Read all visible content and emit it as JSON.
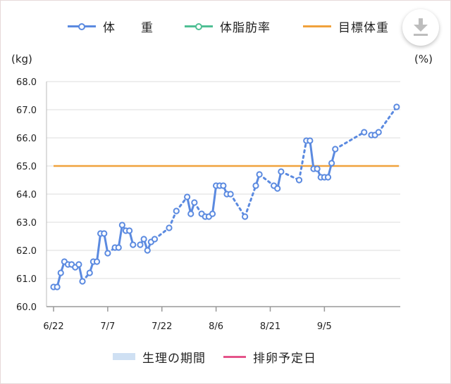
{
  "legend_top": [
    {
      "label": "体　　重",
      "color": "#5b8ae0",
      "marker": true
    },
    {
      "label": "体脂肪率",
      "color": "#4fbf94",
      "marker": true
    },
    {
      "label": "目標体重",
      "color": "#f0a23c",
      "marker": false
    }
  ],
  "download_button": {
    "icon": "download-icon",
    "color": "#bdbdbd"
  },
  "legend_bottom": [
    {
      "label": "生理の期間",
      "color": "#cfe0f3",
      "kind": "swatch"
    },
    {
      "label": "排卵予定日",
      "color": "#e5548a",
      "kind": "line"
    }
  ],
  "chart_data": {
    "type": "line",
    "ylabel": "(kg)",
    "y2label": "(%)",
    "ylim": [
      60.0,
      68.0
    ],
    "yticks": [
      "60.0",
      "61.0",
      "62.0",
      "63.0",
      "64.0",
      "65.0",
      "66.0",
      "67.0",
      "68.0"
    ],
    "xlim": [
      "2021-06-22",
      "2021-09-26"
    ],
    "xticks": [
      {
        "date": "2021-06-22",
        "label": "6/22"
      },
      {
        "date": "2021-07-07",
        "label": "7/7"
      },
      {
        "date": "2021-07-22",
        "label": "7/22"
      },
      {
        "date": "2021-08-06",
        "label": "8/6"
      },
      {
        "date": "2021-08-21",
        "label": "8/21"
      },
      {
        "date": "2021-09-05",
        "label": "9/5"
      }
    ],
    "grid": true,
    "target_weight": 65.0,
    "target_color": "#f0a23c",
    "series_color": "#5b8ae0",
    "series": [
      {
        "name": "体重",
        "points": [
          [
            "2021-06-22",
            60.7
          ],
          [
            "2021-06-23",
            60.7
          ],
          [
            "2021-06-24",
            61.2
          ],
          [
            "2021-06-25",
            61.6
          ],
          [
            "2021-06-26",
            61.5
          ],
          [
            "2021-06-27",
            61.5
          ],
          [
            "2021-06-28",
            61.4
          ],
          [
            "2021-06-29",
            61.5
          ],
          [
            "2021-06-30",
            60.9
          ],
          [
            "2021-07-02",
            61.2
          ],
          [
            "2021-07-03",
            61.6
          ],
          [
            "2021-07-04",
            61.6
          ],
          [
            "2021-07-05",
            62.6
          ],
          [
            "2021-07-06",
            62.6
          ],
          [
            "2021-07-07",
            61.9
          ],
          [
            "2021-07-09",
            62.1
          ],
          [
            "2021-07-10",
            62.1
          ],
          [
            "2021-07-11",
            62.9
          ],
          [
            "2021-07-12",
            62.7
          ],
          [
            "2021-07-13",
            62.7
          ],
          [
            "2021-07-14",
            62.2
          ],
          [
            "2021-07-16",
            62.2
          ],
          [
            "2021-07-17",
            62.4
          ],
          [
            "2021-07-18",
            62.0
          ],
          [
            "2021-07-19",
            62.3
          ],
          [
            "2021-07-20",
            62.4
          ],
          [
            "2021-07-24",
            62.8
          ],
          [
            "2021-07-26",
            63.4
          ],
          [
            "2021-07-29",
            63.9
          ],
          [
            "2021-07-30",
            63.3
          ],
          [
            "2021-07-31",
            63.7
          ],
          [
            "2021-08-02",
            63.3
          ],
          [
            "2021-08-03",
            63.2
          ],
          [
            "2021-08-04",
            63.2
          ],
          [
            "2021-08-05",
            63.3
          ],
          [
            "2021-08-06",
            64.3
          ],
          [
            "2021-08-07",
            64.3
          ],
          [
            "2021-08-08",
            64.3
          ],
          [
            "2021-08-09",
            64.0
          ],
          [
            "2021-08-10",
            64.0
          ],
          [
            "2021-08-14",
            63.2
          ],
          [
            "2021-08-17",
            64.3
          ],
          [
            "2021-08-18",
            64.7
          ],
          [
            "2021-08-22",
            64.3
          ],
          [
            "2021-08-23",
            64.2
          ],
          [
            "2021-08-24",
            64.8
          ],
          [
            "2021-08-29",
            64.5
          ],
          [
            "2021-08-31",
            65.9
          ],
          [
            "2021-09-01",
            65.9
          ],
          [
            "2021-09-02",
            64.9
          ],
          [
            "2021-09-03",
            64.9
          ],
          [
            "2021-09-04",
            64.6
          ],
          [
            "2021-09-05",
            64.6
          ],
          [
            "2021-09-06",
            64.6
          ],
          [
            "2021-09-07",
            65.1
          ],
          [
            "2021-09-08",
            65.6
          ],
          [
            "2021-09-16",
            66.2
          ],
          [
            "2021-09-18",
            66.1
          ],
          [
            "2021-09-19",
            66.1
          ],
          [
            "2021-09-20",
            66.2
          ],
          [
            "2021-09-25",
            67.1
          ]
        ]
      }
    ]
  }
}
